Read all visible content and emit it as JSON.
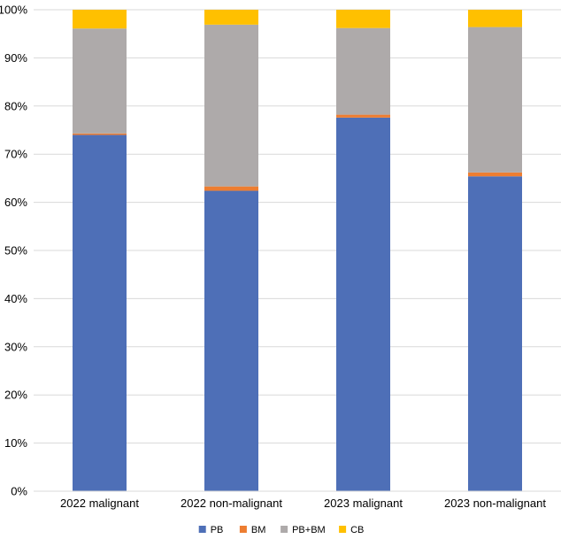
{
  "chart_data": {
    "type": "bar",
    "stacked": true,
    "percent": true,
    "categories": [
      "2022 malignant",
      "2022 non-malignant",
      "2023 malignant",
      "2023 non-malignant"
    ],
    "series": [
      {
        "name": "PB",
        "color": "#4e6fb7",
        "values": [
          74.0,
          62.4,
          77.6,
          65.4
        ]
      },
      {
        "name": "BM",
        "color": "#ed7d31",
        "values": [
          0.3,
          0.9,
          0.6,
          0.8
        ]
      },
      {
        "name": "PB+BM",
        "color": "#aeaaaa",
        "values": [
          21.8,
          33.6,
          18.0,
          30.2
        ]
      },
      {
        "name": "CB",
        "color": "#ffc000",
        "values": [
          3.9,
          3.1,
          3.8,
          3.6
        ]
      }
    ],
    "yticks": [
      "0%",
      "10%",
      "20%",
      "30%",
      "40%",
      "50%",
      "60%",
      "70%",
      "80%",
      "90%",
      "100%"
    ],
    "ylim": [
      0,
      100
    ],
    "grid": true,
    "legend_position": "bottom",
    "title": "",
    "xlabel": "",
    "ylabel": ""
  }
}
